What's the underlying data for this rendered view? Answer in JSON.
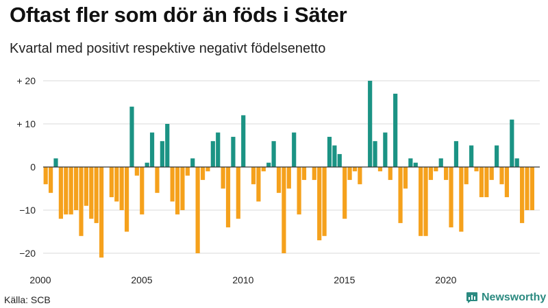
{
  "title": "Oftast fler som dör än föds i Säter",
  "subtitle": "Kvartal med positivt respektive negativt födelsenetto",
  "source": "Källa: SCB",
  "brand": "Newsworthy",
  "colors": {
    "positive": "#1b9384",
    "negative": "#f5a11c",
    "grid": "#d9d9d9",
    "zero": "#333333"
  },
  "chart_data": {
    "type": "bar",
    "x_tick_labels": [
      "2000",
      "2005",
      "2010",
      "2015",
      "2020"
    ],
    "y_tick_labels": [
      "+ 20",
      "+ 10",
      "0",
      "−10",
      "−20"
    ],
    "y_ticks": [
      20,
      10,
      0,
      -10,
      -20
    ],
    "ylim": [
      -21,
      20
    ],
    "x_ticks": [
      2000,
      2005,
      2010,
      2015,
      2020
    ],
    "xlim": [
      2000,
      2024.25
    ],
    "series": [
      {
        "x": [
          2000.0,
          2000.25,
          2000.5,
          2000.75,
          2001.0,
          2001.25,
          2001.5,
          2001.75,
          2002.0,
          2002.25,
          2002.5,
          2002.75,
          2003.0,
          2003.25,
          2003.5,
          2003.75,
          2004.0,
          2004.25,
          2004.5,
          2004.75,
          2005.0,
          2005.25,
          2005.5,
          2005.75,
          2006.0,
          2006.25,
          2006.5,
          2006.75,
          2007.0,
          2007.25,
          2007.5,
          2007.75,
          2008.0,
          2008.25,
          2008.5,
          2008.75,
          2009.0,
          2009.25,
          2009.5,
          2009.75,
          2010.0,
          2010.25,
          2010.5,
          2010.75,
          2011.0,
          2011.25,
          2011.5,
          2011.75,
          2012.0,
          2012.25,
          2012.5,
          2012.75,
          2013.0,
          2013.25,
          2013.5,
          2013.75,
          2014.0,
          2014.25,
          2014.5,
          2014.75,
          2015.0,
          2015.25,
          2015.5,
          2015.75,
          2016.0,
          2016.25,
          2016.5,
          2016.75,
          2017.0,
          2017.25,
          2017.5,
          2017.75,
          2018.0,
          2018.25,
          2018.5,
          2018.75,
          2019.0,
          2019.25,
          2019.5,
          2019.75,
          2020.0,
          2020.25,
          2020.5,
          2020.75,
          2021.0,
          2021.25,
          2021.5,
          2021.75,
          2022.0,
          2022.25,
          2022.5,
          2022.75,
          2023.0,
          2023.25,
          2023.5,
          2023.75,
          2024.0
        ],
        "values": [
          -4,
          -6,
          2,
          -12,
          -11,
          -11,
          -10,
          -16,
          -9,
          -12,
          -13,
          -21,
          0,
          -7,
          -8,
          -10,
          -15,
          14,
          -2,
          -11,
          1,
          8,
          -6,
          6,
          10,
          -8,
          -11,
          -10,
          -2,
          2,
          -20,
          -3,
          -1,
          6,
          8,
          -5,
          -14,
          7,
          -12,
          12,
          0,
          -4,
          -8,
          -1,
          1,
          6,
          -6,
          -20,
          -5,
          8,
          -11,
          -3,
          0,
          -3,
          -17,
          -16,
          7,
          5,
          3,
          -12,
          -3,
          -1,
          -4,
          0,
          20,
          6,
          -1,
          8,
          -3,
          17,
          -13,
          -5,
          2,
          1,
          -16,
          -16,
          -3,
          -1,
          2,
          -3,
          -14,
          6,
          -15,
          -4,
          5,
          -1,
          -7,
          -7,
          -3,
          5,
          -4,
          -7,
          11,
          2,
          -13,
          -10,
          -10
        ]
      }
    ]
  }
}
